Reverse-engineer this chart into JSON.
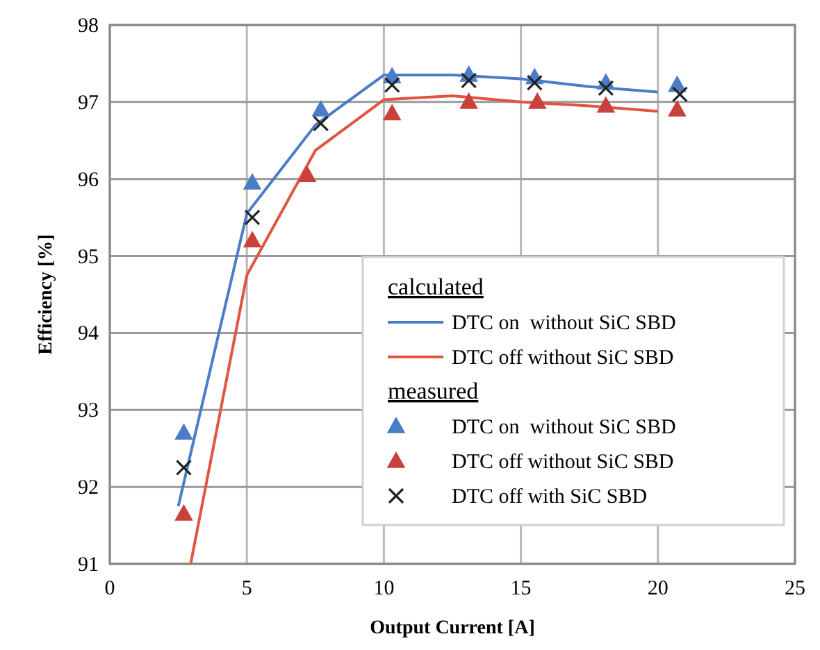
{
  "chart_data": {
    "type": "line",
    "xlabel": "Output Current  [A]",
    "ylabel": "Efficiency  [%]",
    "xlim": [
      0,
      25
    ],
    "xticks": [
      0,
      5,
      10,
      15,
      20,
      25
    ],
    "ylim": [
      91,
      98
    ],
    "yticks": [
      91,
      92,
      93,
      94,
      95,
      96,
      97,
      98
    ],
    "grid": true,
    "legend": "bottom right",
    "annotations": [
      "calculated",
      "measured"
    ],
    "series": [
      {
        "name": "DTC on  without SiC SBD",
        "color": "#4a7cc8",
        "marker": "none",
        "x": [
          2.5,
          5,
          7.5,
          10,
          12.5,
          15,
          17.5,
          20
        ],
        "values": [
          91.75,
          95.55,
          96.7,
          97.35,
          97.35,
          97.3,
          97.2,
          97.13
        ]
      },
      {
        "name": "DTC off without SiC SBD",
        "color": "#e0553f",
        "marker": "none",
        "x": [
          2.95,
          5,
          7.5,
          10,
          12.5,
          15,
          17.5,
          20
        ],
        "values": [
          91,
          94.75,
          96.37,
          97.03,
          97.08,
          97,
          96.95,
          96.88
        ]
      },
      {
        "name": "DTC on  without SiC SBD",
        "type": "scatter",
        "color": "#4a7cc8",
        "marker": "triangle",
        "x": [
          2.7,
          5.2,
          7.7,
          10.3,
          13.1,
          15.5,
          18.1,
          20.7
        ],
        "values": [
          92.7,
          95.95,
          96.9,
          97.33,
          97.35,
          97.32,
          97.25,
          97.22
        ]
      },
      {
        "name": "DTC off without SiC SBD",
        "type": "scatter",
        "color": "#c8413a",
        "marker": "triangle",
        "x": [
          2.7,
          5.2,
          7.2,
          10.3,
          13.1,
          15.6,
          18.1,
          20.7
        ],
        "values": [
          91.65,
          95.2,
          96.05,
          96.85,
          97,
          97,
          96.95,
          96.9
        ]
      },
      {
        "name": "DTC off with SiC SBD",
        "type": "scatter",
        "color": "#222222",
        "marker": "cross",
        "x": [
          2.7,
          5.2,
          7.7,
          10.3,
          13.1,
          15.5,
          18.1,
          20.8
        ],
        "values": [
          92.25,
          95.5,
          96.72,
          97.22,
          97.28,
          97.25,
          97.18,
          97.1
        ]
      }
    ]
  }
}
